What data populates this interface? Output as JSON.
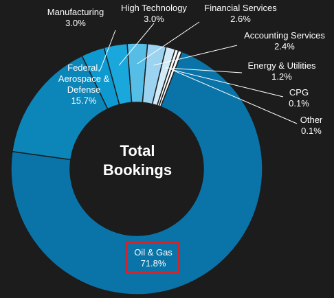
{
  "chart_data": {
    "type": "pie",
    "variant": "donut",
    "center_text": [
      "Total",
      "Bookings"
    ],
    "slices": [
      {
        "label": "Oil & Gas",
        "value": 71.8,
        "display": "71.8%",
        "color": "#0a74a8"
      },
      {
        "label": "Federal, Aerospace & Defense",
        "value": 15.7,
        "display": "15.7%",
        "color": "#0c85b8"
      },
      {
        "label": "Manufacturing",
        "value": 3.0,
        "display": "3.0%",
        "color": "#0e9ad0"
      },
      {
        "label": "High Technology",
        "value": 3.0,
        "display": "3.0%",
        "color": "#1aa7dc"
      },
      {
        "label": "Financial Services",
        "value": 2.6,
        "display": "2.6%",
        "color": "#56bde6"
      },
      {
        "label": "Accounting Services",
        "value": 2.4,
        "display": "2.4%",
        "color": "#9cd3f0"
      },
      {
        "label": "Energy & Utilities",
        "value": 1.2,
        "display": "1.2%",
        "color": "#d2ebf8"
      },
      {
        "label": "CPG",
        "value": 0.1,
        "display": "0.1%",
        "color": "#ffffff"
      },
      {
        "label": "Other",
        "value": 0.1,
        "display": "0.1%",
        "color": "#ffffff"
      }
    ],
    "highlighted": "Oil & Gas",
    "highlight_color": "#d6232a",
    "background": "#1c1c1c"
  },
  "labels": {
    "oil": {
      "name": "Oil & Gas",
      "pct": "71.8%"
    },
    "federal": {
      "line1": "Federal,",
      "line2": "Aerospace &",
      "line3": "Defense",
      "pct": "15.7%"
    },
    "manufacturing": {
      "name": "Manufacturing",
      "pct": "3.0%"
    },
    "hightech": {
      "name": "High Technology",
      "pct": "3.0%"
    },
    "financial": {
      "name": "Financial Services",
      "pct": "2.6%"
    },
    "accounting": {
      "name": "Accounting Services",
      "pct": "2.4%"
    },
    "energy": {
      "name": "Energy & Utilities",
      "pct": "1.2%"
    },
    "cpg": {
      "name": "CPG",
      "pct": "0.1%"
    },
    "other": {
      "name": "Other",
      "pct": "0.1%"
    }
  }
}
